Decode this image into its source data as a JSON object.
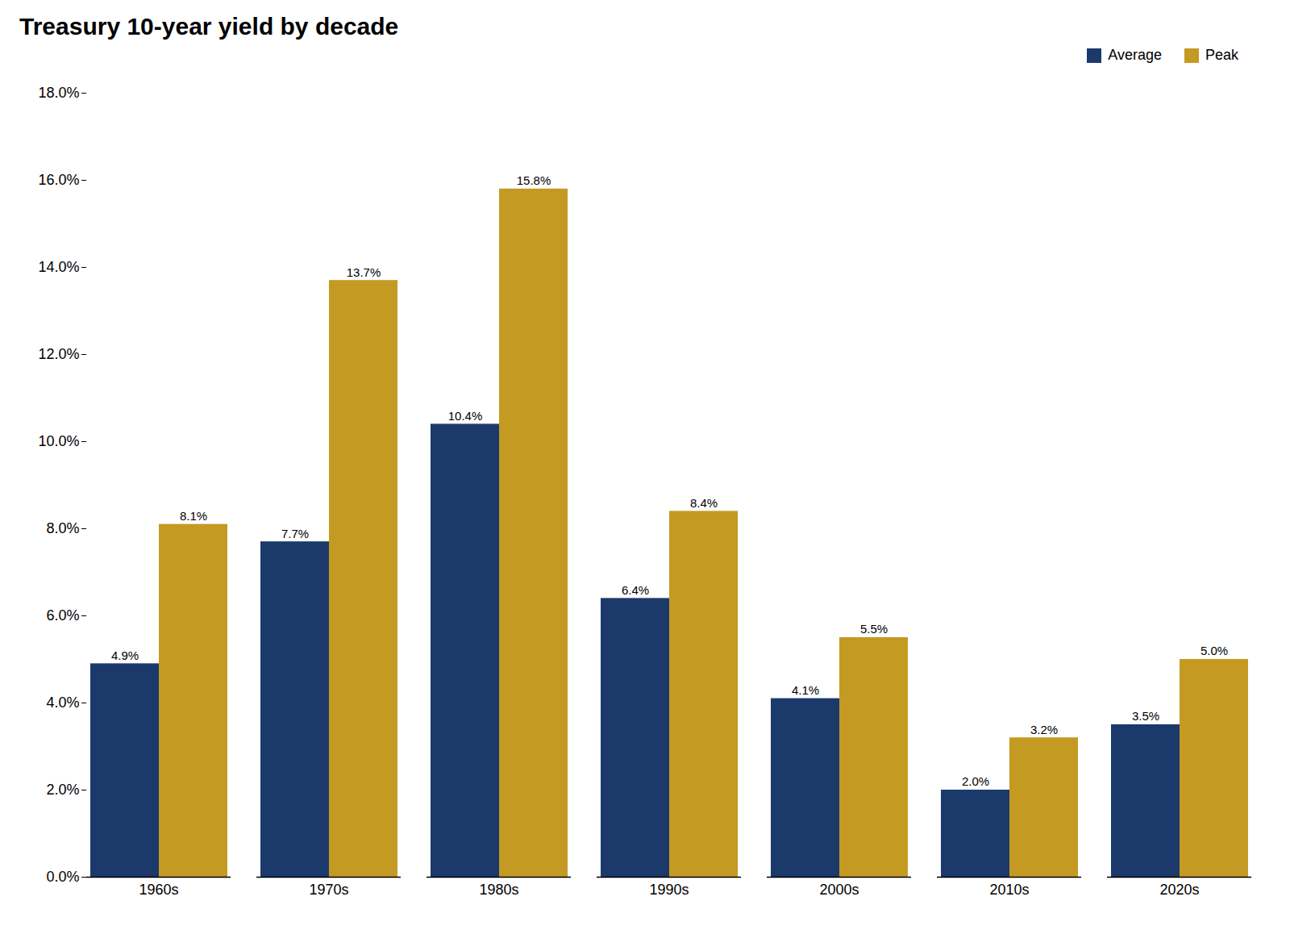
{
  "chart_data": {
    "type": "bar",
    "title": "Treasury 10-year yield by decade",
    "categories": [
      "1960s",
      "1970s",
      "1980s",
      "1990s",
      "2000s",
      "2010s",
      "2020s"
    ],
    "series": [
      {
        "name": "Average",
        "color": "#1B3A6B",
        "values": [
          4.9,
          7.7,
          10.4,
          6.4,
          4.1,
          2.0,
          3.5
        ],
        "value_labels": [
          "4.9%",
          "7.7%",
          "10.4%",
          "6.4%",
          "4.1%",
          "2.0%",
          "3.5%"
        ]
      },
      {
        "name": "Peak",
        "color": "#C49A22",
        "values": [
          8.1,
          13.7,
          15.8,
          8.4,
          5.5,
          3.2,
          5.0
        ],
        "value_labels": [
          "8.1%",
          "13.7%",
          "15.8%",
          "8.4%",
          "5.5%",
          "3.2%",
          "5.0%"
        ]
      }
    ],
    "ylim": [
      0,
      18
    ],
    "yticks": [
      {
        "value": 0,
        "label": "0.0%"
      },
      {
        "value": 2,
        "label": "2.0%"
      },
      {
        "value": 4,
        "label": "4.0%"
      },
      {
        "value": 6,
        "label": "6.0%"
      },
      {
        "value": 8,
        "label": "8.0%"
      },
      {
        "value": 10,
        "label": "10.0%"
      },
      {
        "value": 12,
        "label": "12.0%"
      },
      {
        "value": 14,
        "label": "14.0%"
      },
      {
        "value": 16,
        "label": "16.0%"
      },
      {
        "value": 18,
        "label": "18.0%"
      }
    ],
    "data_labels": true,
    "legend": "upper right",
    "grid": false
  }
}
